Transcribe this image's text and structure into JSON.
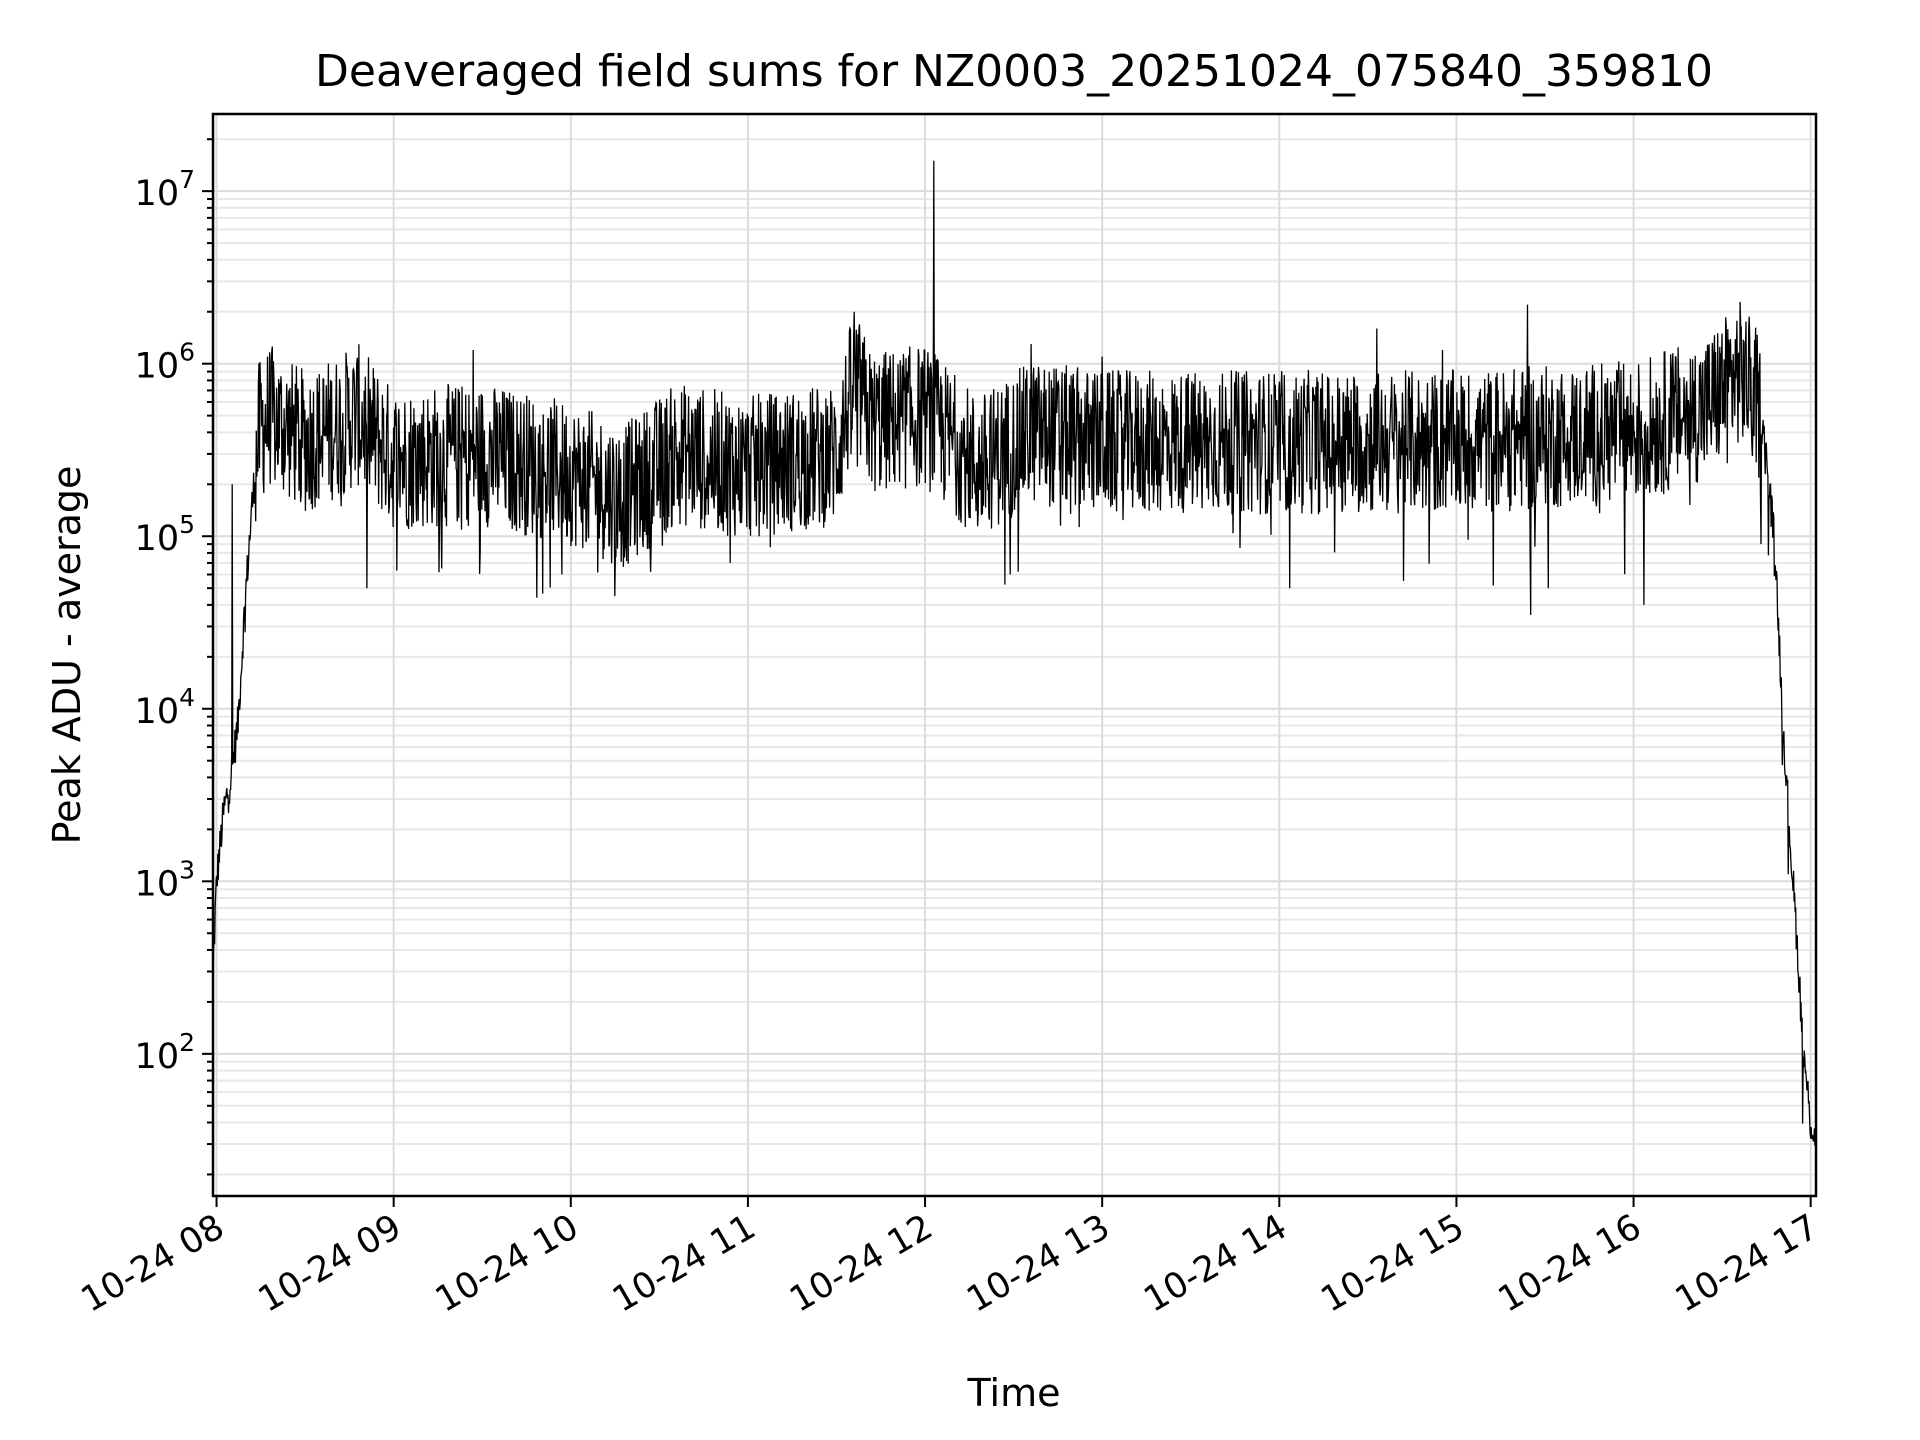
{
  "chart_data": {
    "type": "line",
    "title": "Deaveraged field sums for NZ0003_20251024_075840_359810",
    "xlabel": "Time",
    "ylabel": "Peak ADU - average",
    "yscale": "log",
    "ylim": [
      15,
      28000000
    ],
    "xlim_hours": [
      7.98,
      17.03
    ],
    "grid": true,
    "x_ticks": [
      {
        "hour": 8,
        "label": "10-24 08"
      },
      {
        "hour": 9,
        "label": "10-24 09"
      },
      {
        "hour": 10,
        "label": "10-24 10"
      },
      {
        "hour": 11,
        "label": "10-24 11"
      },
      {
        "hour": 12,
        "label": "10-24 12"
      },
      {
        "hour": 13,
        "label": "10-24 13"
      },
      {
        "hour": 14,
        "label": "10-24 14"
      },
      {
        "hour": 15,
        "label": "10-24 15"
      },
      {
        "hour": 16,
        "label": "10-24 16"
      },
      {
        "hour": 17,
        "label": "10-24 17"
      }
    ],
    "y_ticks": [
      {
        "value": 100,
        "base": "10",
        "exp": "2"
      },
      {
        "value": 1000,
        "base": "10",
        "exp": "3"
      },
      {
        "value": 10000,
        "base": "10",
        "exp": "4"
      },
      {
        "value": 100000,
        "base": "10",
        "exp": "5"
      },
      {
        "value": 1000000,
        "base": "10",
        "exp": "6"
      },
      {
        "value": 10000000,
        "base": "10",
        "exp": "7"
      }
    ],
    "series": [
      {
        "name": "deaveraged field sum",
        "color": "#000000",
        "envelope": [
          {
            "t": 7.98,
            "v": 300
          },
          {
            "t": 8.0,
            "v": 1000
          },
          {
            "t": 8.04,
            "v": 2500
          },
          {
            "t": 8.08,
            "v": 4000
          },
          {
            "t": 8.12,
            "v": 8000
          },
          {
            "t": 8.16,
            "v": 40000
          },
          {
            "t": 8.2,
            "v": 150000
          },
          {
            "t": 8.24,
            "v": 400000
          },
          {
            "t": 8.3,
            "v": 500000
          },
          {
            "t": 8.5,
            "v": 350000
          },
          {
            "t": 8.8,
            "v": 500000
          },
          {
            "t": 9.0,
            "v": 280000
          },
          {
            "t": 9.5,
            "v": 300000
          },
          {
            "t": 10.0,
            "v": 230000
          },
          {
            "t": 10.3,
            "v": 170000
          },
          {
            "t": 10.6,
            "v": 300000
          },
          {
            "t": 11.0,
            "v": 250000
          },
          {
            "t": 11.5,
            "v": 300000
          },
          {
            "t": 11.6,
            "v": 800000
          },
          {
            "t": 11.7,
            "v": 450000
          },
          {
            "t": 12.0,
            "v": 500000
          },
          {
            "t": 12.3,
            "v": 250000
          },
          {
            "t": 12.6,
            "v": 400000
          },
          {
            "t": 13.0,
            "v": 350000
          },
          {
            "t": 14.0,
            "v": 350000
          },
          {
            "t": 15.0,
            "v": 350000
          },
          {
            "t": 16.0,
            "v": 400000
          },
          {
            "t": 16.4,
            "v": 550000
          },
          {
            "t": 16.6,
            "v": 900000
          },
          {
            "t": 16.7,
            "v": 600000
          },
          {
            "t": 16.75,
            "v": 300000
          },
          {
            "t": 16.8,
            "v": 80000
          },
          {
            "t": 16.84,
            "v": 10000
          },
          {
            "t": 16.88,
            "v": 2000
          },
          {
            "t": 16.92,
            "v": 500
          },
          {
            "t": 16.96,
            "v": 100
          },
          {
            "t": 17.0,
            "v": 40
          },
          {
            "t": 17.03,
            "v": 32
          }
        ],
        "spikes": [
          {
            "t": 8.09,
            "v": 200000
          },
          {
            "t": 8.85,
            "v": 1900000
          },
          {
            "t": 9.45,
            "v": 1200000
          },
          {
            "t": 11.6,
            "v": 2000000
          },
          {
            "t": 12.05,
            "v": 15000000
          },
          {
            "t": 12.6,
            "v": 1300000
          },
          {
            "t": 13.0,
            "v": 1100000
          },
          {
            "t": 14.55,
            "v": 1600000
          },
          {
            "t": 14.92,
            "v": 1200000
          },
          {
            "t": 15.4,
            "v": 2200000
          },
          {
            "t": 16.65,
            "v": 1600000
          }
        ],
        "dips": [
          {
            "t": 8.85,
            "v": 50000
          },
          {
            "t": 9.27,
            "v": 65000
          },
          {
            "t": 9.95,
            "v": 60000
          },
          {
            "t": 10.25,
            "v": 45000
          },
          {
            "t": 10.9,
            "v": 70000
          },
          {
            "t": 12.48,
            "v": 60000
          },
          {
            "t": 14.06,
            "v": 50000
          },
          {
            "t": 14.7,
            "v": 55000
          },
          {
            "t": 15.42,
            "v": 35000
          },
          {
            "t": 15.52,
            "v": 50000
          },
          {
            "t": 16.06,
            "v": 40000
          },
          {
            "t": 16.72,
            "v": 90000
          }
        ]
      }
    ]
  }
}
